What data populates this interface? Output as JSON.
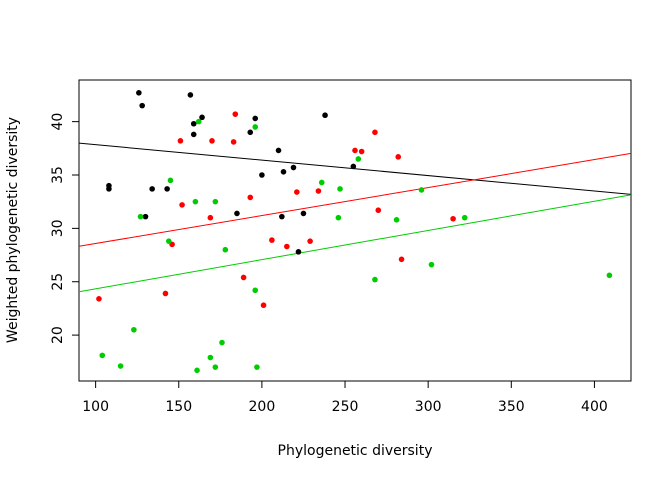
{
  "chart_data": {
    "type": "scatter",
    "title": "",
    "xlabel": "Phylogenetic diversity",
    "ylabel": "Weighted phylogenetic diversity",
    "xlim": [
      90,
      422
    ],
    "ylim": [
      15.7,
      43.9
    ],
    "x_ticks": [
      100,
      150,
      200,
      250,
      300,
      350,
      400
    ],
    "y_ticks": [
      20,
      25,
      30,
      35,
      40
    ],
    "grid": false,
    "legend": "none",
    "series": [
      {
        "color": "#000000",
        "points": [
          [
            108,
            34.0
          ],
          [
            108,
            33.7
          ],
          [
            126,
            42.7
          ],
          [
            128,
            41.5
          ],
          [
            130,
            31.1
          ],
          [
            134,
            33.7
          ],
          [
            143,
            33.7
          ],
          [
            157,
            42.5
          ],
          [
            159,
            39.8
          ],
          [
            159,
            38.8
          ],
          [
            164,
            40.4
          ],
          [
            185,
            31.4
          ],
          [
            193,
            39.0
          ],
          [
            196,
            40.3
          ],
          [
            200,
            35.0
          ],
          [
            210,
            37.3
          ],
          [
            212,
            31.1
          ],
          [
            213,
            35.3
          ],
          [
            219,
            35.7
          ],
          [
            222,
            27.8
          ],
          [
            225,
            31.4
          ],
          [
            238,
            40.6
          ],
          [
            255,
            35.8
          ]
        ],
        "line": {
          "intercept": 39.29,
          "slope": -0.01448
        }
      },
      {
        "color": "#ff0000",
        "points": [
          [
            102,
            23.4
          ],
          [
            142,
            23.9
          ],
          [
            146,
            28.5
          ],
          [
            151,
            38.2
          ],
          [
            152,
            32.2
          ],
          [
            169,
            31.0
          ],
          [
            170,
            38.2
          ],
          [
            183,
            38.1
          ],
          [
            184,
            40.7
          ],
          [
            189,
            25.4
          ],
          [
            193,
            32.9
          ],
          [
            201,
            22.8
          ],
          [
            206,
            28.9
          ],
          [
            215,
            28.3
          ],
          [
            221,
            33.4
          ],
          [
            229,
            28.8
          ],
          [
            234,
            33.5
          ],
          [
            256,
            37.3
          ],
          [
            260,
            37.2
          ],
          [
            268,
            39.0
          ],
          [
            270,
            31.7
          ],
          [
            282,
            36.7
          ],
          [
            284,
            27.1
          ],
          [
            315,
            30.9
          ]
        ],
        "line": {
          "intercept": 25.96,
          "slope": 0.02621
        }
      },
      {
        "color": "#00cd00",
        "points": [
          [
            104,
            18.1
          ],
          [
            115,
            17.1
          ],
          [
            123,
            20.5
          ],
          [
            127,
            31.1
          ],
          [
            144,
            28.8
          ],
          [
            145,
            34.5
          ],
          [
            160,
            32.5
          ],
          [
            161,
            16.7
          ],
          [
            162,
            40.0
          ],
          [
            169,
            17.9
          ],
          [
            172,
            17.0
          ],
          [
            172,
            32.5
          ],
          [
            176,
            19.3
          ],
          [
            178,
            28.0
          ],
          [
            196,
            24.2
          ],
          [
            196,
            39.5
          ],
          [
            197,
            17.0
          ],
          [
            236,
            34.3
          ],
          [
            246,
            31.0
          ],
          [
            247,
            33.7
          ],
          [
            258,
            36.5
          ],
          [
            268,
            25.2
          ],
          [
            281,
            30.8
          ],
          [
            296,
            33.6
          ],
          [
            302,
            26.6
          ],
          [
            322,
            31.0
          ],
          [
            409,
            25.6
          ]
        ],
        "line": {
          "intercept": 21.6,
          "slope": 0.02735
        }
      }
    ]
  }
}
